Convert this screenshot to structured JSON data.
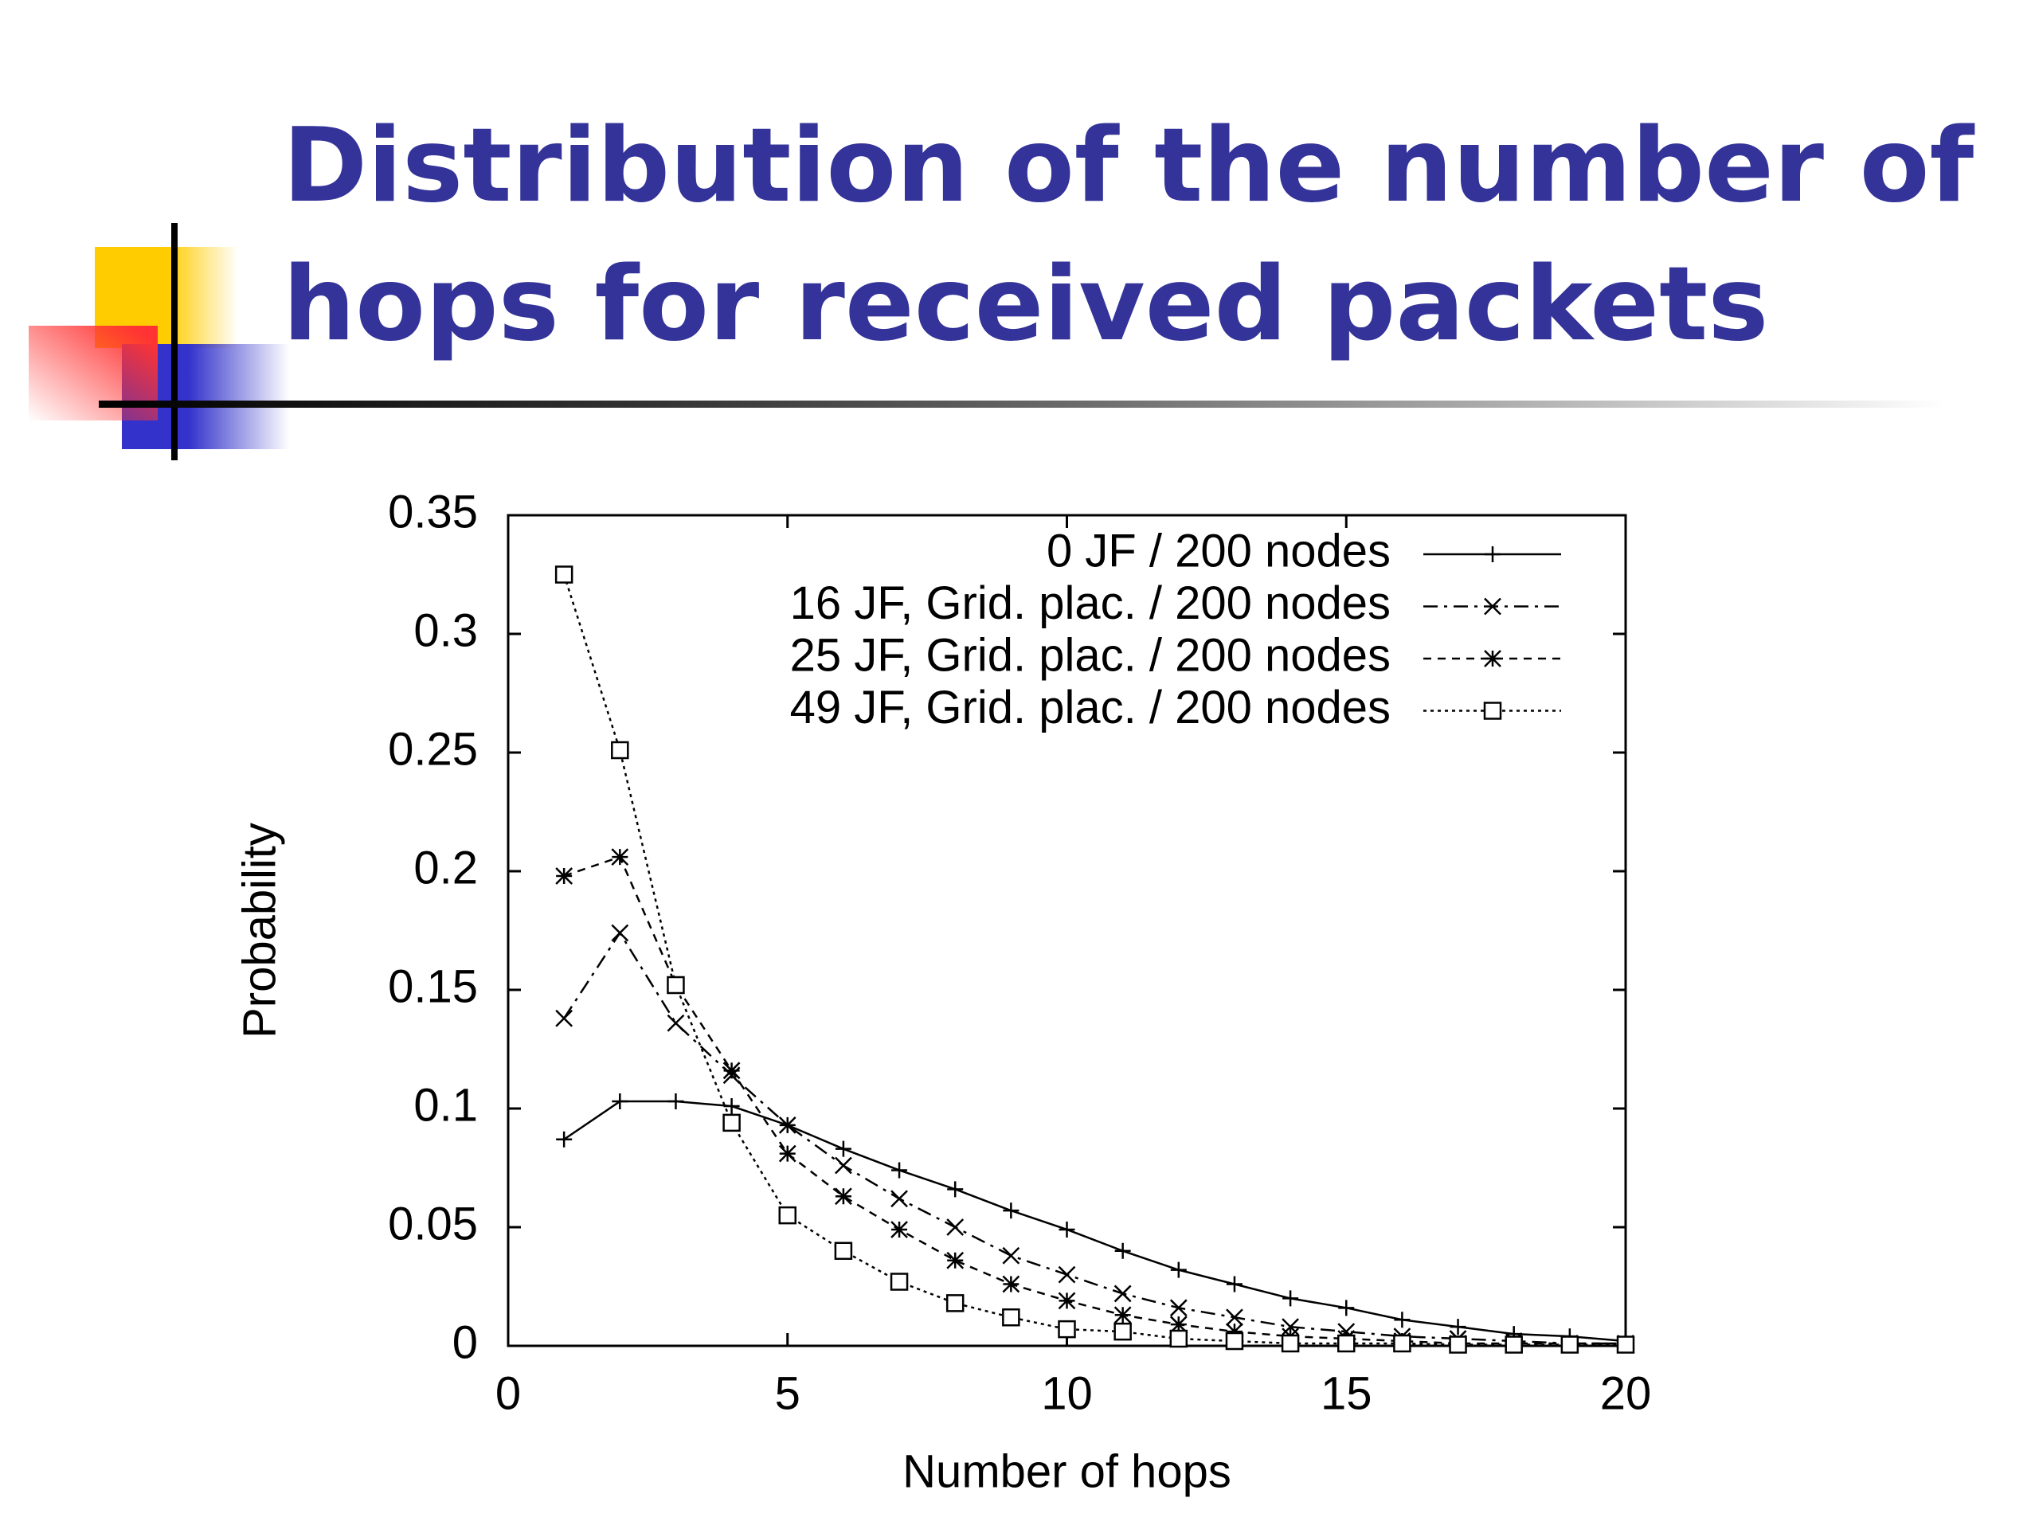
{
  "chart_data": {
    "type": "line",
    "title": "Distribution of the number of hops for received packets",
    "x_label": "Number of hops",
    "y_label": "Probability",
    "x": [
      1,
      2,
      3,
      4,
      5,
      6,
      7,
      8,
      9,
      10,
      11,
      12,
      13,
      14,
      15,
      16,
      17,
      18,
      19,
      20
    ],
    "xlim": [
      0,
      20
    ],
    "xticks": [
      0,
      5,
      10,
      15,
      20
    ],
    "ylim": [
      0,
      0.35
    ],
    "yticks": [
      0,
      0.05,
      0.1,
      0.15,
      0.2,
      0.25,
      0.3,
      0.35
    ],
    "legend": "upper right",
    "grid": false,
    "series": [
      {
        "name": "0 JF / 200 nodes",
        "color": "#000000",
        "marker": "plus",
        "line_style": "solid",
        "values": [
          0.087,
          0.103,
          0.103,
          0.101,
          0.093,
          0.083,
          0.074,
          0.066,
          0.057,
          0.049,
          0.04,
          0.032,
          0.026,
          0.02,
          0.016,
          0.011,
          0.008,
          0.005,
          0.004,
          0.002
        ]
      },
      {
        "name": "16 JF, Grid. plac. / 200 nodes",
        "color": "#000000",
        "marker": "cross",
        "line_style": "dashed",
        "values": [
          0.138,
          0.174,
          0.136,
          0.114,
          0.093,
          0.076,
          0.062,
          0.05,
          0.038,
          0.03,
          0.022,
          0.016,
          0.012,
          0.008,
          0.006,
          0.004,
          0.003,
          0.002,
          0.001,
          0.001
        ]
      },
      {
        "name": "25 JF, Grid. plac. / 200 nodes",
        "color": "#000000",
        "marker": "star",
        "line_style": "short-dashed",
        "values": [
          0.198,
          0.206,
          0.152,
          0.116,
          0.081,
          0.063,
          0.049,
          0.036,
          0.026,
          0.019,
          0.013,
          0.009,
          0.006,
          0.004,
          0.003,
          0.002,
          0.001,
          0.001,
          0.001,
          0.001
        ]
      },
      {
        "name": "49 JF, Grid. plac. / 200 nodes",
        "color": "#000000",
        "marker": "square",
        "line_style": "dotted",
        "values": [
          0.325,
          0.251,
          0.152,
          0.094,
          0.055,
          0.04,
          0.027,
          0.018,
          0.012,
          0.007,
          0.006,
          0.003,
          0.002,
          0.001,
          0.001,
          0.001,
          0.0005,
          0.0005,
          0.0005,
          0.0005
        ]
      }
    ]
  }
}
